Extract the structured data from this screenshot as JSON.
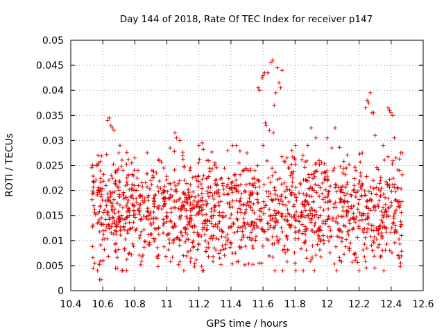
{
  "chart_data": {
    "type": "scatter",
    "title": "Day 144 of 2018, Rate Of TEC Index for receiver p147",
    "xlabel": "GPS time / hours",
    "ylabel": "ROTI / TECUs",
    "xlim": [
      10.4,
      12.6
    ],
    "ylim": [
      0,
      0.05
    ],
    "x_ticks": [
      "10.4",
      "10.6",
      "10.8",
      "11",
      "11.2",
      "11.4",
      "11.6",
      "11.8",
      "12",
      "12.2",
      "12.4",
      "12.6"
    ],
    "y_ticks": [
      "0",
      "0.005",
      "0.01",
      "0.015",
      "0.02",
      "0.025",
      "0.03",
      "0.035",
      "0.04",
      "0.045",
      "0.05"
    ],
    "grid": true,
    "marker": "+",
    "color": "#e00000",
    "cloud": {
      "x_range": [
        10.53,
        12.47
      ],
      "count": 1500,
      "y_mean": 0.016,
      "y_spread": 0.006,
      "y_min": 0.004,
      "y_max": 0.029
    },
    "series": [
      {
        "name": "p147",
        "points": [
          [
            10.54,
            0.0045
          ],
          [
            10.55,
            0.0055
          ],
          [
            10.56,
            0.025
          ],
          [
            10.57,
            0.027
          ],
          [
            10.58,
            0.0022
          ],
          [
            10.59,
            0.0022
          ],
          [
            10.6,
            0.006
          ],
          [
            10.62,
            0.021
          ],
          [
            10.63,
            0.034
          ],
          [
            10.64,
            0.0345
          ],
          [
            10.65,
            0.033
          ],
          [
            10.66,
            0.0325
          ],
          [
            10.67,
            0.032
          ],
          [
            10.68,
            0.0045
          ],
          [
            10.69,
            0.0045
          ],
          [
            10.7,
            0.0275
          ],
          [
            10.72,
            0.004
          ],
          [
            10.75,
            0.0225
          ],
          [
            10.78,
            0.0255
          ],
          [
            10.82,
            0.024
          ],
          [
            10.86,
            0.0185
          ],
          [
            10.9,
            0.022
          ],
          [
            10.95,
            0.026
          ],
          [
            10.98,
            0.0245
          ],
          [
            11.02,
            0.0285
          ],
          [
            11.05,
            0.0315
          ],
          [
            11.06,
            0.0305
          ],
          [
            11.08,
            0.03
          ],
          [
            11.1,
            0.027
          ],
          [
            11.15,
            0.0065
          ],
          [
            11.2,
            0.029
          ],
          [
            11.22,
            0.0295
          ],
          [
            11.25,
            0.026
          ],
          [
            11.3,
            0.0255
          ],
          [
            11.33,
            0.0065
          ],
          [
            11.38,
            0.028
          ],
          [
            11.42,
            0.023
          ],
          [
            11.45,
            0.0255
          ],
          [
            11.5,
            0.0275
          ],
          [
            11.55,
            0.024
          ],
          [
            11.57,
            0.0405
          ],
          [
            11.575,
            0.0055
          ],
          [
            11.58,
            0.04
          ],
          [
            11.59,
            0.0055
          ],
          [
            11.595,
            0.0425
          ],
          [
            11.6,
            0.043
          ],
          [
            11.61,
            0.0435
          ],
          [
            11.615,
            0.0335
          ],
          [
            11.62,
            0.033
          ],
          [
            11.63,
            0.0435
          ],
          [
            11.64,
            0.032
          ],
          [
            11.65,
            0.0455
          ],
          [
            11.66,
            0.046
          ],
          [
            11.665,
            0.0315
          ],
          [
            11.67,
            0.037
          ],
          [
            11.68,
            0.0395
          ],
          [
            11.69,
            0.0445
          ],
          [
            11.7,
            0.0415
          ],
          [
            11.71,
            0.0405
          ],
          [
            11.72,
            0.044
          ],
          [
            11.75,
            0.0265
          ],
          [
            11.78,
            0.028
          ],
          [
            11.8,
            0.0055
          ],
          [
            11.85,
            0.027
          ],
          [
            11.88,
            0.029
          ],
          [
            11.9,
            0.0325
          ],
          [
            11.93,
            0.0305
          ],
          [
            11.95,
            0.026
          ],
          [
            12.0,
            0.0305
          ],
          [
            12.03,
            0.0285
          ],
          [
            12.05,
            0.0325
          ],
          [
            12.08,
            0.006
          ],
          [
            12.12,
            0.0245
          ],
          [
            12.18,
            0.024
          ],
          [
            12.2,
            0.004
          ],
          [
            12.22,
            0.0275
          ],
          [
            12.24,
            0.0365
          ],
          [
            12.25,
            0.038
          ],
          [
            12.26,
            0.0375
          ],
          [
            12.27,
            0.0395
          ],
          [
            12.28,
            0.0355
          ],
          [
            12.29,
            0.0355
          ],
          [
            12.3,
            0.031
          ],
          [
            12.35,
            0.029
          ],
          [
            12.38,
            0.0365
          ],
          [
            12.39,
            0.036
          ],
          [
            12.4,
            0.0355
          ],
          [
            12.41,
            0.035
          ],
          [
            12.42,
            0.0305
          ],
          [
            12.43,
            0.0265
          ],
          [
            12.45,
            0.0065
          ],
          [
            12.46,
            0.0275
          ],
          [
            12.47,
            0.0275
          ]
        ]
      }
    ]
  }
}
